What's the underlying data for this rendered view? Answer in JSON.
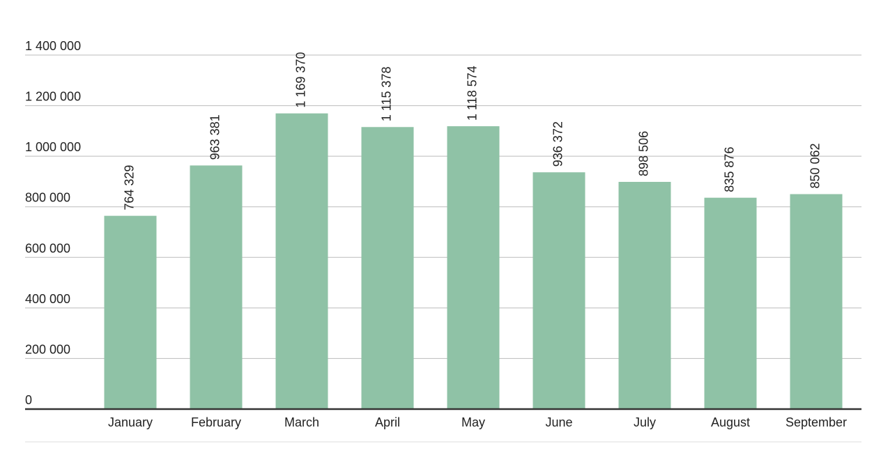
{
  "chart_data": {
    "type": "bar",
    "categories": [
      "January",
      "February",
      "March",
      "April",
      "May",
      "June",
      "July",
      "August",
      "September"
    ],
    "values": [
      764329,
      963381,
      1169370,
      1115378,
      1118574,
      936372,
      898506,
      835876,
      850062
    ],
    "value_labels": [
      "764 329",
      "963 381",
      "1 169 370",
      "1 115 378",
      "1 118 574",
      "936 372",
      "898 506",
      "835 876",
      "850 062"
    ],
    "color": "#8fc2a6",
    "ylim": [
      0,
      1400000
    ],
    "yticks": [
      0,
      {
        "value": 200000,
        "label": "200 000"
      },
      {
        "value": 400000,
        "label": "400 000"
      },
      {
        "value": 600000,
        "label": "600 000"
      },
      {
        "value": 800000,
        "label": "800 000"
      },
      {
        "value": 1000000,
        "label": "1 000 000"
      },
      {
        "value": 1200000,
        "label": "1 200 000"
      },
      {
        "value": 1400000,
        "label": "1 400 000"
      }
    ],
    "grid": true
  }
}
